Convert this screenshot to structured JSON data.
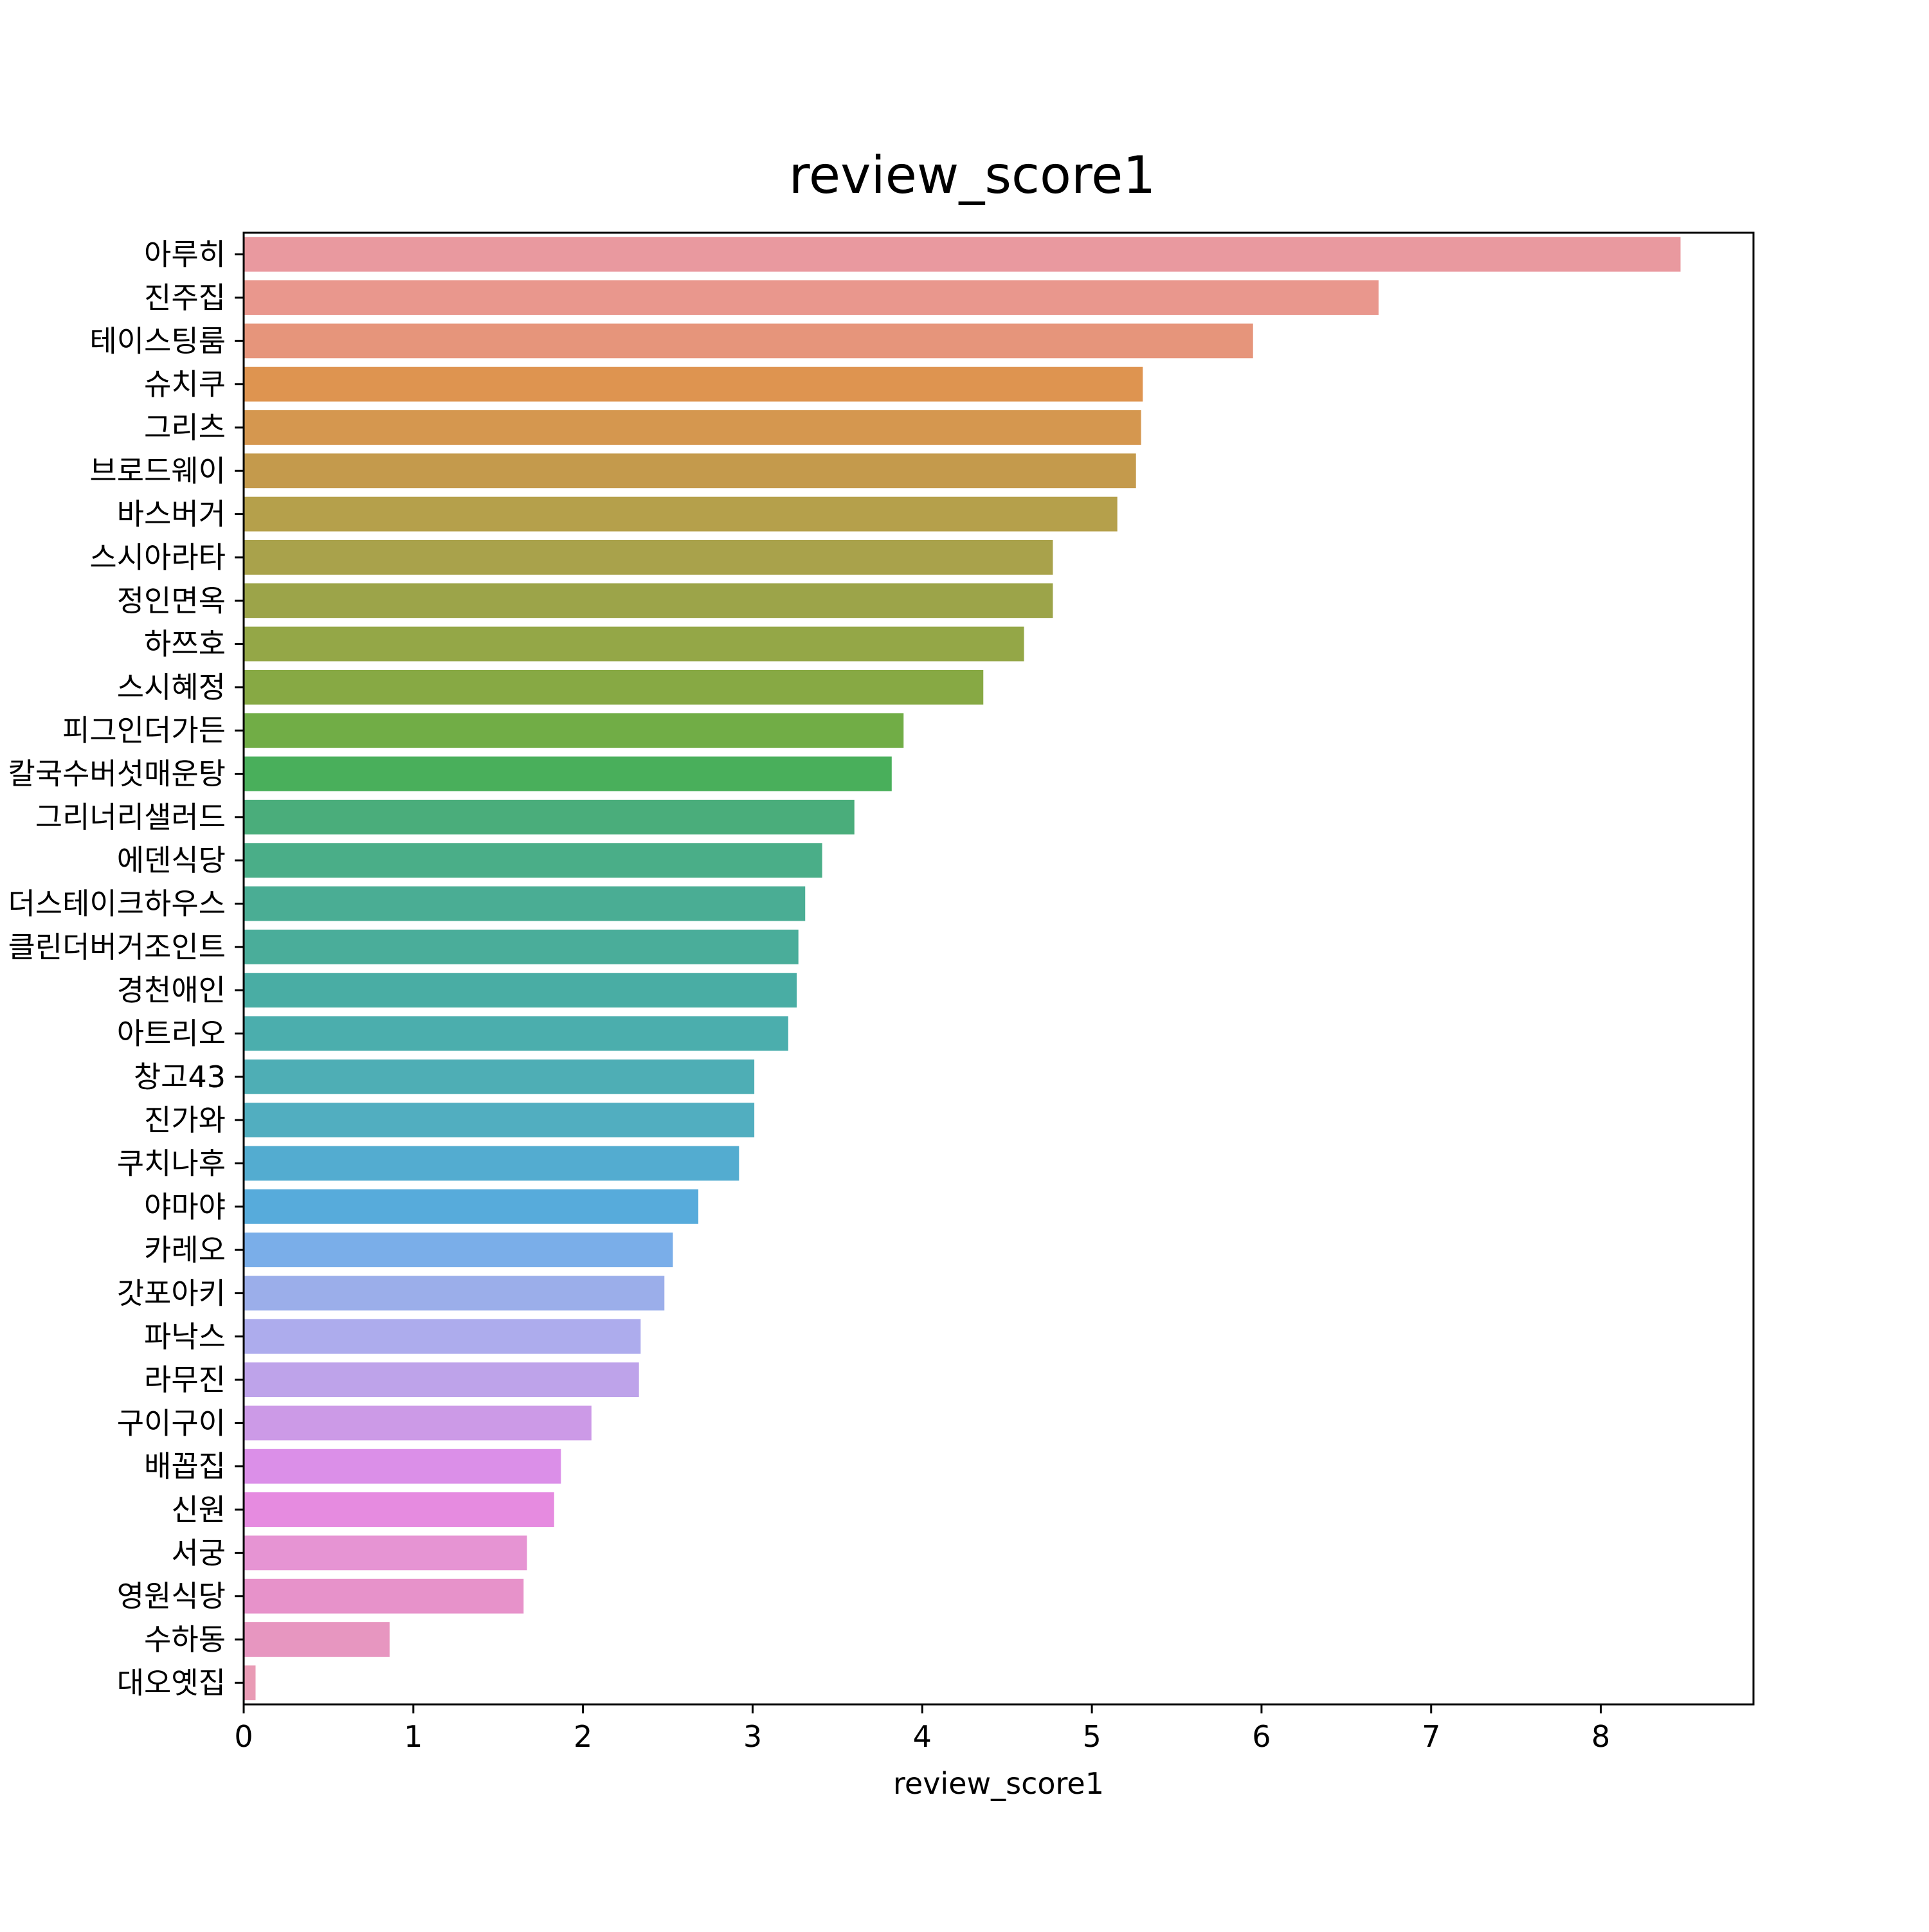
{
  "chart_data": {
    "type": "bar",
    "orientation": "horizontal",
    "title": "review_score1",
    "xlabel": "review_score1",
    "ylabel": "",
    "xlim": [
      0,
      8.9
    ],
    "xticks": [
      0,
      1,
      2,
      3,
      4,
      5,
      6,
      7,
      8
    ],
    "grid": false,
    "categories": [
      "아루히",
      "진주집",
      "테이스팅룸",
      "슈치쿠",
      "그리츠",
      "브로드웨이",
      "바스버거",
      "스시아라타",
      "정인면옥",
      "하쯔호",
      "스시혜정",
      "피그인더가든",
      "칼국수버섯매운탕",
      "그리너리샐러드",
      "에덴식당",
      "더스테이크하우스",
      "클린더버거조인트",
      "경천애인",
      "아트리오",
      "창고43",
      "진가와",
      "쿠치나후",
      "야마야",
      "카레오",
      "갓포아키",
      "파낙스",
      "라무진",
      "구이구이",
      "배꼽집",
      "신원",
      "서궁",
      "영원식당",
      "수하동",
      "대오옛집"
    ],
    "values": [
      8.47,
      6.69,
      5.95,
      5.3,
      5.29,
      5.26,
      5.15,
      4.77,
      4.77,
      4.6,
      4.36,
      3.89,
      3.82,
      3.6,
      3.41,
      3.31,
      3.27,
      3.26,
      3.21,
      3.01,
      3.01,
      2.92,
      2.68,
      2.53,
      2.48,
      2.34,
      2.33,
      2.05,
      1.87,
      1.83,
      1.67,
      1.65,
      0.86,
      0.07
    ],
    "colors": [
      "#e9999f",
      "#e9978d",
      "#e6957b",
      "#de9450",
      "#d5974f",
      "#c49a4c",
      "#b5a04b",
      "#a9a24b",
      "#9ca449",
      "#94a747",
      "#87a944",
      "#71ad46",
      "#49af5b",
      "#4aad7b",
      "#4aae88",
      "#4aad94",
      "#4aad9a",
      "#49ada4",
      "#4baead",
      "#4eaeb5",
      "#51aec0",
      "#53acd0",
      "#57abdb",
      "#7aaee9",
      "#9baeea",
      "#adaced",
      "#bea3ea",
      "#cc9ae7",
      "#db8fe8",
      "#e68be0",
      "#e694d3",
      "#e792ca",
      "#e796c0",
      "#e99bb5"
    ]
  }
}
